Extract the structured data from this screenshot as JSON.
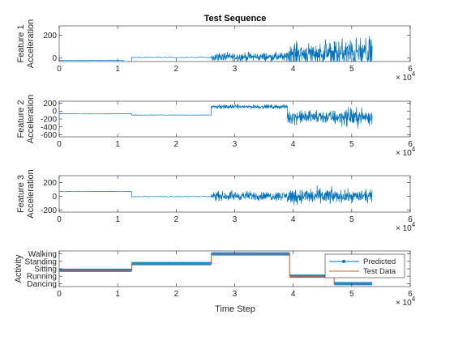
{
  "chart_data": {
    "type": "line",
    "title": "Test Sequence",
    "colors": {
      "signal": "#0072bd",
      "predicted": "#0072bd",
      "test": "#d95319",
      "axes": "#262626"
    },
    "x_axis": {
      "label": "Time Step",
      "ticks": [
        "0",
        "1",
        "2",
        "3",
        "4",
        "5",
        "6"
      ],
      "range": [
        0,
        60000
      ],
      "exponent_base": "× 10",
      "exponent_power": "4"
    },
    "panels": [
      {
        "ylabel_line1": "Feature 1",
        "ylabel_line2": "Acceleration",
        "ylim": [
          -30,
          280
        ],
        "yticks": [
          200,
          0
        ],
        "yticklabels": [
          "200",
          "0"
        ],
        "segments": [
          {
            "x0": 0,
            "x1": 11000,
            "mean": -20,
            "amp": 4
          },
          {
            "x0": 11000,
            "x1": 12400,
            "mean": -40,
            "amp": 4
          },
          {
            "x0": 12400,
            "x1": 26000,
            "mean": 5,
            "amp": 4
          },
          {
            "x0": 26000,
            "x1": 39000,
            "mean": 10,
            "amp": 55
          },
          {
            "x0": 39000,
            "x1": 47000,
            "mean": 40,
            "amp": 140
          },
          {
            "x0": 47000,
            "x1": 53500,
            "mean": 40,
            "amp": 190
          }
        ]
      },
      {
        "ylabel_line1": "Feature 2",
        "ylabel_line2": "Acceleration",
        "ylim": [
          -650,
          250
        ],
        "yticks": [
          200,
          0,
          -200,
          -400,
          -600
        ],
        "yticklabels": [
          "200",
          "0",
          "-200",
          "-400",
          "-600"
        ],
        "segments": [
          {
            "x0": 0,
            "x1": 12400,
            "mean": -70,
            "amp": 6
          },
          {
            "x0": 12400,
            "x1": 26000,
            "mean": -100,
            "amp": 6
          },
          {
            "x0": 26000,
            "x1": 39000,
            "mean": 110,
            "amp": 75
          },
          {
            "x0": 39000,
            "x1": 47000,
            "mean": -150,
            "amp": 250
          },
          {
            "x0": 47000,
            "x1": 53500,
            "mean": -150,
            "amp": 320
          }
        ]
      },
      {
        "ylabel_line1": "Feature 3",
        "ylabel_line2": "Acceleration",
        "ylim": [
          -230,
          300
        ],
        "yticks": [
          200,
          0,
          -200
        ],
        "yticklabels": [
          "200",
          "0",
          "-200"
        ],
        "segments": [
          {
            "x0": 0,
            "x1": 12400,
            "mean": 70,
            "amp": 5
          },
          {
            "x0": 12400,
            "x1": 26000,
            "mean": -5,
            "amp": 5
          },
          {
            "x0": 26000,
            "x1": 39000,
            "mean": 5,
            "amp": 95
          },
          {
            "x0": 39000,
            "x1": 47000,
            "mean": 0,
            "amp": 170
          },
          {
            "x0": 47000,
            "x1": 53500,
            "mean": 0,
            "amp": 130
          }
        ]
      },
      {
        "ylabel_line1": "Activity",
        "ylabel_line2": "",
        "categorical": true,
        "ylim": [
          0.6,
          5.4
        ],
        "categories": [
          "Dancing",
          "Running",
          "Sitting",
          "Standing",
          "Walking"
        ],
        "yticks": [
          1,
          2,
          3,
          4,
          5
        ],
        "steps": [
          {
            "x0": 0,
            "x1": 12400,
            "level": 2.8
          },
          {
            "x0": 12400,
            "x1": 26000,
            "level": 3.7
          },
          {
            "x0": 26000,
            "x1": 39400,
            "level": 5.0
          },
          {
            "x0": 39400,
            "x1": 47000,
            "level": 2.0
          },
          {
            "x0": 47000,
            "x1": 53500,
            "level": 1.0
          }
        ],
        "legend": {
          "position": "top-right",
          "entries": [
            "Predicted",
            "Test Data"
          ]
        }
      }
    ]
  }
}
